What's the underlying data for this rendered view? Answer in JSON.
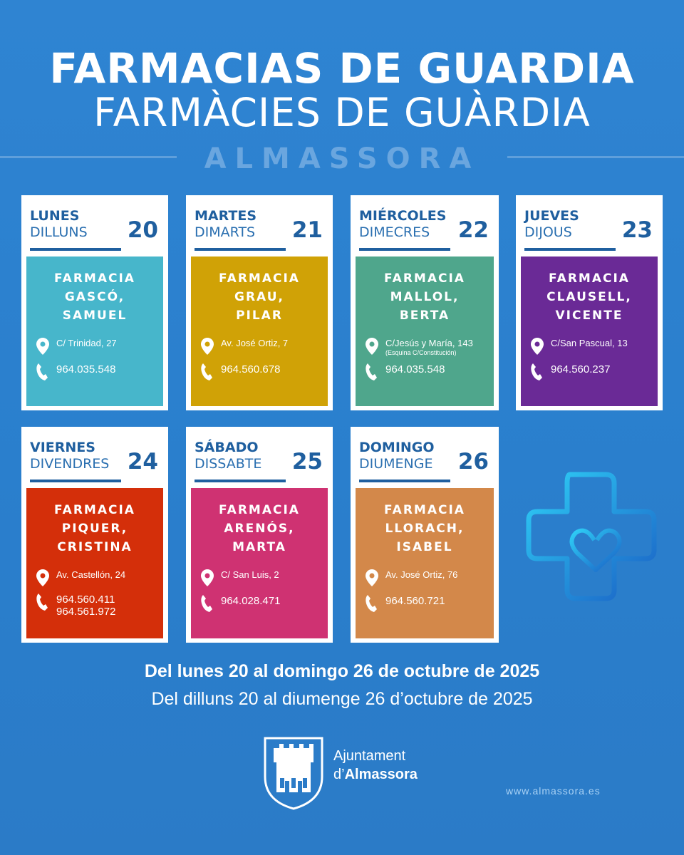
{
  "header": {
    "title_es": "FARMACIAS DE GUARDIA",
    "title_ca": "FARMÀCIES DE GUÀRDIA",
    "town": "ALMASSORA"
  },
  "days": [
    {
      "day_es": "LUNES",
      "day_ca": "DILLUNS",
      "num": "20",
      "name": "FARMACIA\nGASCÓ,\nSAMUEL",
      "address": "C/ Trinidad, 27",
      "address_note": "",
      "phone": "964.035.548",
      "phone2": "",
      "color": "#47b6cb"
    },
    {
      "day_es": "MARTES",
      "day_ca": "DIMARTS",
      "num": "21",
      "name": "FARMACIA\nGRAU,\nPILAR",
      "address": "Av. José Ortiz, 7",
      "address_note": "",
      "phone": "964.560.678",
      "phone2": "",
      "color": "#d0a206"
    },
    {
      "day_es": "MIÉRCOLES",
      "day_ca": "DIMECRES",
      "num": "22",
      "name": "FARMACIA\nMALLOL,\nBERTA",
      "address": "C/Jesús y María,  143",
      "address_note": "(Esquina C/Constitución)",
      "phone": "964.035.548",
      "phone2": "",
      "color": "#4fa68c"
    },
    {
      "day_es": "JUEVES",
      "day_ca": "DIJOUS",
      "num": "23",
      "name": "FARMACIA\nCLAUSELL,\nVICENTE",
      "address": "C/San Pascual, 13",
      "address_note": "",
      "phone": "964.560.237",
      "phone2": "",
      "color": "#6a2a96"
    },
    {
      "day_es": "VIERNES",
      "day_ca": "DIVENDRES",
      "num": "24",
      "name": "FARMACIA\nPIQUER,\nCRISTINA",
      "address": "Av. Castellón, 24",
      "address_note": "",
      "phone": "964.560.411",
      "phone2": "964.561.972",
      "color": "#d42f0a"
    },
    {
      "day_es": "SÁBADO",
      "day_ca": "DISSABTE",
      "num": "25",
      "name": "FARMACIA\nARENÓS,\nMARTA",
      "address": "C/ San Luis, 2",
      "address_note": "",
      "phone": "964.028.471",
      "phone2": "",
      "color": "#cf3272"
    },
    {
      "day_es": "DOMINGO",
      "day_ca": "DIUMENGE",
      "num": "26",
      "name": "FARMACIA\nLLORACH,\nISABEL",
      "address": "Av. José Ortiz, 76",
      "address_note": "",
      "phone": "964.560.721",
      "phone2": "",
      "color": "#d3884a"
    }
  ],
  "footer": {
    "line_es": "Del lunes 20 al domingo 26 de octubre de 2025",
    "line_ca": "Del dilluns 20 al diumenge 26 d’octubre de 2025",
    "logo_line1": "Ajuntament",
    "logo_line2_prefix": "d’",
    "logo_line2_bold": "Almassora",
    "url": "www.almassora.es"
  },
  "icons": [
    "location-pin-icon",
    "phone-icon",
    "pharmacy-cross-icon",
    "castle-crest-icon"
  ]
}
